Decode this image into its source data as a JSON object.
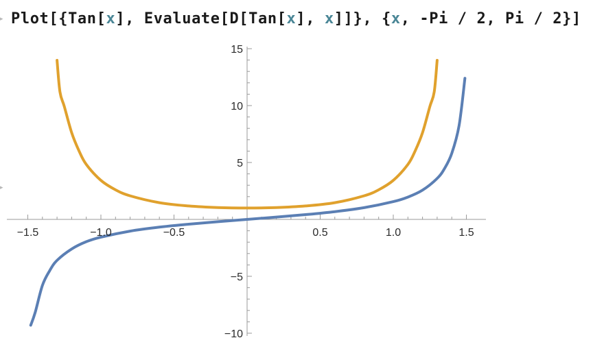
{
  "input": {
    "tokens": [
      {
        "text": "Plot[{Tan[",
        "kind": "code"
      },
      {
        "text": "x",
        "kind": "var"
      },
      {
        "text": "], Evaluate[D[Tan[",
        "kind": "code"
      },
      {
        "text": "x",
        "kind": "var"
      },
      {
        "text": "], ",
        "kind": "code"
      },
      {
        "text": "x",
        "kind": "var"
      },
      {
        "text": "]]}, {",
        "kind": "code"
      },
      {
        "text": "x",
        "kind": "var"
      },
      {
        "text": ", -Pi / 2, Pi / 2}]",
        "kind": "code"
      }
    ]
  },
  "colors": {
    "series_tan": "#5b7fb4",
    "series_sec2": "#e0a12d",
    "axis": "#9a9a9a",
    "variable": "#4a8696"
  },
  "chart_data": {
    "type": "line",
    "title": "",
    "xlabel": "",
    "ylabel": "",
    "xlim": [
      -1.5708,
      1.5708
    ],
    "ylim": [
      -10,
      15
    ],
    "x_ticks": [
      -1.5,
      -1.0,
      -0.5,
      0.5,
      1.0,
      1.5
    ],
    "x_tick_labels": [
      "−1.5",
      "−1.0",
      "−0.5",
      "0.5",
      "1.0",
      "1.5"
    ],
    "y_ticks": [
      -10,
      -5,
      5,
      10,
      15
    ],
    "y_tick_labels": [
      "−10",
      "−5",
      "5",
      "10",
      "15"
    ],
    "grid": false,
    "series": [
      {
        "x": [
          -1.48,
          -1.45,
          -1.4,
          -1.35,
          -1.3,
          -1.2,
          -1.1,
          -1.0,
          -0.8,
          -0.6,
          -0.4,
          -0.2,
          0.0,
          0.2,
          0.4,
          0.6,
          0.8,
          1.0,
          1.1,
          1.2,
          1.3,
          1.35,
          1.4,
          1.45,
          1.49
        ],
        "y": [
          -9.3,
          -8.2,
          -5.8,
          -4.5,
          -3.6,
          -2.6,
          -1.96,
          -1.56,
          -1.03,
          -0.68,
          -0.42,
          -0.2,
          0.0,
          0.2,
          0.42,
          0.68,
          1.03,
          1.56,
          1.96,
          2.57,
          3.6,
          4.46,
          5.8,
          8.24,
          12.4
        ]
      },
      {
        "x": [
          -1.3,
          -1.28,
          -1.25,
          -1.2,
          -1.15,
          -1.1,
          -1.0,
          -0.9,
          -0.8,
          -0.6,
          -0.4,
          -0.2,
          0.0,
          0.2,
          0.4,
          0.6,
          0.8,
          0.9,
          1.0,
          1.1,
          1.15,
          1.2,
          1.25,
          1.28,
          1.3
        ],
        "y": [
          13.98,
          11.2,
          9.91,
          7.62,
          6.03,
          4.83,
          3.43,
          2.6,
          2.07,
          1.47,
          1.18,
          1.04,
          1.0,
          1.04,
          1.18,
          1.47,
          2.07,
          2.6,
          3.43,
          4.83,
          6.03,
          7.62,
          9.91,
          11.2,
          13.98
        ]
      }
    ]
  }
}
